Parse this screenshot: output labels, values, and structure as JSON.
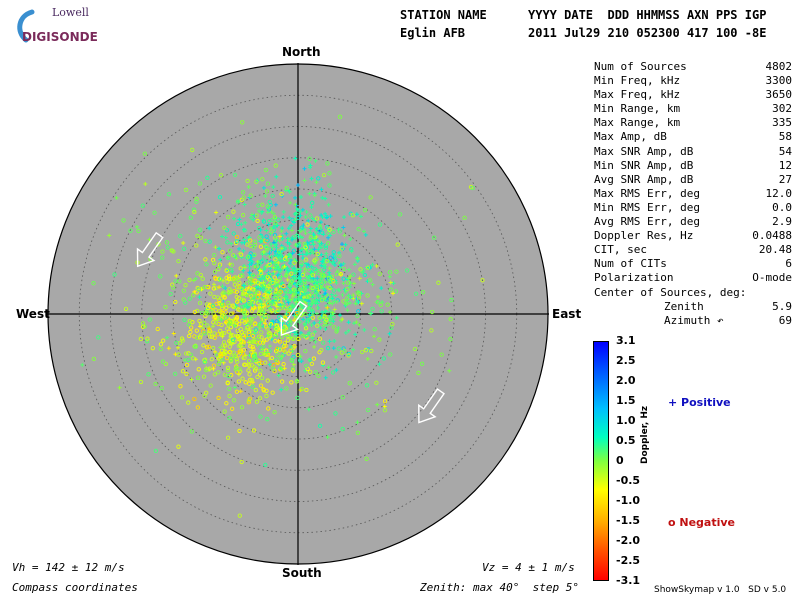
{
  "logo": {
    "top_text": "Lowell",
    "main_text": "DIGISONDE"
  },
  "header": {
    "station_label": "STATION NAME",
    "station_value": "Eglin AFB",
    "date_labels": "YYYY DATE  DDD HHMMSS AXN PPS IGP",
    "date_values": "2011 Jul29 210 052300 417 100 -8E"
  },
  "stats": [
    {
      "label": "Num of Sources",
      "value": "4802"
    },
    {
      "label": "Min Freq, kHz",
      "value": "3300"
    },
    {
      "label": "Max Freq, kHz",
      "value": "3650"
    },
    {
      "label": "Min Range, km",
      "value": "302"
    },
    {
      "label": "Max Range, km",
      "value": "335"
    },
    {
      "label": "Max Amp, dB",
      "value": "58"
    },
    {
      "label": "Max SNR Amp, dB",
      "value": "54"
    },
    {
      "label": "Min SNR Amp, dB",
      "value": "12"
    },
    {
      "label": "Avg SNR Amp, dB",
      "value": "27"
    },
    {
      "label": "Max RMS Err, deg",
      "value": "12.0"
    },
    {
      "label": "Min RMS Err, deg",
      "value": "0.0"
    },
    {
      "label": "Avg RMS Err, deg",
      "value": "2.9"
    },
    {
      "label": "Doppler Res, Hz",
      "value": "0.0488"
    },
    {
      "label": "CIT, sec",
      "value": "20.48"
    },
    {
      "label": "Num of CITs",
      "value": "6"
    },
    {
      "label": "Polarization",
      "value": "O-mode"
    },
    {
      "label": "Center of Sources, deg:",
      "value": ""
    },
    {
      "label": "Zenith",
      "value": "5.9"
    },
    {
      "label": "Azimuth ↶",
      "value": "69"
    }
  ],
  "compass": {
    "north": "North",
    "south": "South",
    "east": "East",
    "west": "West"
  },
  "footer": {
    "vh": "Vh = 142 ± 12 m/s",
    "vz": "Vz = 4 ± 1 m/s",
    "coords": "Compass coordinates",
    "zenith": "Zenith: max 40°  step 5°",
    "credit": "ShowSkymap v 1.0   SD v 5.0"
  },
  "colorbar": {
    "label": "Doppler, Hz",
    "ticks": [
      "3.1",
      "2.5",
      "2.0",
      "1.5",
      "1.0",
      "0.5",
      "0",
      "-0.5",
      "-1.0",
      "-1.5",
      "-2.0",
      "-2.5",
      "-3.1"
    ],
    "colors": {
      "top": "#0000ff",
      "mid": "#ffff00",
      "bottom": "#ff0000"
    }
  },
  "legend": {
    "positive": "+ Positive",
    "negative": "o Negative"
  },
  "colors": {
    "disk": "#a8a8a8",
    "ring": "#555555",
    "positive_text": "#1010c0",
    "negative_text": "#c01010"
  },
  "chart_data": {
    "type": "scatter",
    "projection": "polar skymap, compass coordinates",
    "zenith_max_deg": 40,
    "zenith_step_deg": 5,
    "rings_deg": [
      5,
      10,
      15,
      20,
      25,
      30,
      35
    ],
    "series": [
      {
        "name": "Positive",
        "marker": "+"
      },
      {
        "name": "Negative",
        "marker": "o"
      }
    ],
    "clusters": [
      {
        "center_deg": {
          "east": -1,
          "north": 7
        },
        "spread_deg": [
          5,
          6
        ],
        "doppler_hz": 0.8,
        "count": 700,
        "marker": "+"
      },
      {
        "center_deg": {
          "east": -9,
          "north": -2
        },
        "spread_deg": [
          5,
          6
        ],
        "doppler_hz": -0.6,
        "count": 600,
        "marker": "o"
      },
      {
        "center_deg": {
          "east": 2,
          "north": 2
        },
        "spread_deg": [
          5,
          4
        ],
        "doppler_hz": 0.4,
        "count": 250,
        "marker": "+"
      },
      {
        "center_deg": {
          "east": -4,
          "north": 2
        },
        "spread_deg": [
          12,
          10
        ],
        "doppler_hz": 0.0,
        "count": 450,
        "marker": "o"
      }
    ],
    "velocity_arrows": [
      {
        "direction": "toward southwest",
        "position_deg": {
          "east": -24,
          "north": 10
        }
      },
      {
        "direction": "toward southwest",
        "position_deg": {
          "east": -1,
          "north": -1
        }
      },
      {
        "direction": "toward southwest",
        "position_deg": {
          "east": 21,
          "north": -15
        }
      }
    ]
  }
}
